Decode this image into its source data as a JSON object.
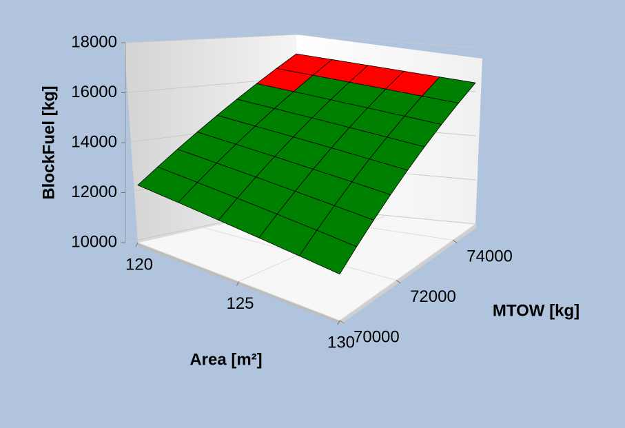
{
  "chart_data": {
    "type": "surface3d",
    "z_label": "BlockFuel [kg]",
    "x_label": "Area [m²]",
    "y_label": "MTOW [kg]",
    "area": [
      120,
      122,
      124,
      126,
      128,
      130
    ],
    "mtow": [
      70000,
      70600,
      71200,
      71800,
      72400,
      73000,
      73600,
      74200,
      74800
    ],
    "z": [
      [
        12300,
        12900,
        13500,
        14100,
        14700,
        15300,
        15900,
        16500,
        17100
      ],
      [
        12160,
        12760,
        13360,
        13960,
        14560,
        15160,
        15760,
        16360,
        16960
      ],
      [
        12020,
        12620,
        13220,
        13820,
        14420,
        15020,
        15620,
        16220,
        16820
      ],
      [
        11880,
        12480,
        13080,
        13680,
        14280,
        14880,
        15480,
        16080,
        16680
      ],
      [
        11740,
        12340,
        12940,
        13540,
        14140,
        14740,
        15340,
        15940,
        16540
      ],
      [
        11600,
        12200,
        12800,
        13400,
        14000,
        14600,
        15200,
        15800,
        16400
      ]
    ],
    "cell_colors": [
      [
        "#008000",
        "#008000",
        "#008000",
        "#008000",
        "#008000",
        "#008000",
        "#ff0000",
        "#ff0000"
      ],
      [
        "#008000",
        "#008000",
        "#008000",
        "#008000",
        "#008000",
        "#008000",
        "#008000",
        "#ff0000"
      ],
      [
        "#008000",
        "#008000",
        "#008000",
        "#008000",
        "#008000",
        "#008000",
        "#008000",
        "#ff0000"
      ],
      [
        "#008000",
        "#008000",
        "#008000",
        "#008000",
        "#008000",
        "#008000",
        "#008000",
        "#ff0000"
      ],
      [
        "#008000",
        "#008000",
        "#008000",
        "#008000",
        "#008000",
        "#008000",
        "#008000",
        "#008000"
      ]
    ],
    "xlim": [
      120,
      130
    ],
    "xticks": [
      120,
      125,
      130
    ],
    "ylim": [
      70000,
      74800
    ],
    "yticks": [
      70000,
      72000,
      74000
    ],
    "zlim": [
      10000,
      18000
    ],
    "zticks": [
      10000,
      12000,
      14000,
      16000,
      18000
    ],
    "grid": true
  }
}
